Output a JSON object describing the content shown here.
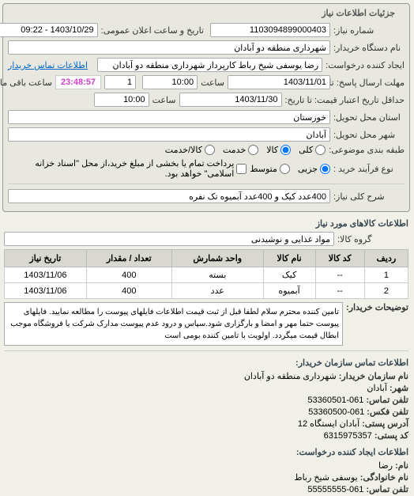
{
  "header": {
    "title": "جزئیات اطلاعات نیاز"
  },
  "form": {
    "request_number_label": "شماره نیاز:",
    "request_number": "1103094899000403",
    "public_datetime_label": "تاریخ و ساعت اعلان عمومی:",
    "public_datetime": "1403/10/29 - 09:22",
    "buyer_org_label": "نام دستگاه خریدار:",
    "buyer_org": "شهرداری منطقه دو آبادان",
    "requester_label": "ایجاد کننده درخواست:",
    "requester": "رضا یوسفی شیخ رباط کارپرداز شهرداری منطقه دو آبادان",
    "contact_link": "اطلاعات تماس خریدار",
    "deadline_label": "مهلت ارسال پاسخ: تا",
    "deadline_date": "1403/11/01",
    "deadline_time_label": "ساعت",
    "deadline_time": "10:00",
    "days_label": "",
    "days": "1",
    "timer": "23:48:57",
    "timer_suffix": "ساعت باقی مانده",
    "validity_label": "حداقل تاریخ اعتبار قیمت: تا تاریخ:",
    "validity_date": "1403/11/30",
    "validity_time_label": "ساعت",
    "validity_time": "10:00",
    "province_label": "استان محل تحویل:",
    "province": "خوزستان",
    "city_label": "شهر محل تحویل:",
    "city": "آبادان",
    "category_label": "طبقه بندی موضوعی:",
    "cat_all": "کلی",
    "cat_goods": "کالا",
    "cat_service": "خدمت",
    "cat_goods_service": "کالا/خدمت",
    "process_label": "نوع فرآیند خرید :",
    "proc_small": "جزیی",
    "proc_medium": "متوسط",
    "proc_note": "پرداخت تمام یا بخشی از مبلغ خرید،از محل \"اسناد خزانه اسلامی\" خواهد بود.",
    "subject_label": "شرح کلی نیاز:",
    "subject": "400عدد کیک و 400عدد آبمیوه تک نفره"
  },
  "items_section": {
    "title": "اطلاعات کالاهای مورد نیاز",
    "group_label": "گروه کالا:",
    "group": "مواد غذایی و نوشیدنی"
  },
  "table": {
    "headers": [
      "ردیف",
      "کد کالا",
      "نام کالا",
      "واحد شمارش",
      "تعداد / مقدار",
      "تاریخ نیاز"
    ],
    "rows": [
      [
        "1",
        "--",
        "کیک",
        "بسته",
        "400",
        "1403/11/06"
      ],
      [
        "2",
        "--",
        "آبمیوه",
        "عدد",
        "400",
        "1403/11/06"
      ]
    ]
  },
  "description": {
    "label": "توضیحات خریدار:",
    "text": "تامین کننده محترم سلام لطفا قبل از ثبت قیمت اطلاعات فایلهای پیوست را مطالعه نمایید. فایلهای پیوست حتما مهر و امضا و بارگزاری شود.سپاس و درود عدم پیوست مدارک شرکت یا فروشگاه موجب ابطال قیمت میگردد. اولویت با تامین کننده بومی است"
  },
  "contact_buyer": {
    "title": "اطلاعات تماس سازمان خریدار:",
    "org_label": "نام سازمان خریدار:",
    "org": "شهرداری منطقه دو آبادان",
    "city_label": "شهر:",
    "city": "آبادان",
    "phone_label": "تلفن تماس:",
    "phone": "061-53360501",
    "fax_label": "تلفن فکس:",
    "fax": "061-53360500",
    "postal_label": "آدرس پستی:",
    "postal": "آبادان ایستگاه 12",
    "postcode_label": "کد پستی:",
    "postcode": "6315975357"
  },
  "contact_requester": {
    "title": "اطلاعات ایجاد کننده درخواست:",
    "name_label": "نام:",
    "name": "رضا",
    "family_label": "نام خانوادگی:",
    "family": "یوسفی شیخ رباط",
    "phone_label": "تلفن تماس:",
    "phone": "061-55555555"
  }
}
